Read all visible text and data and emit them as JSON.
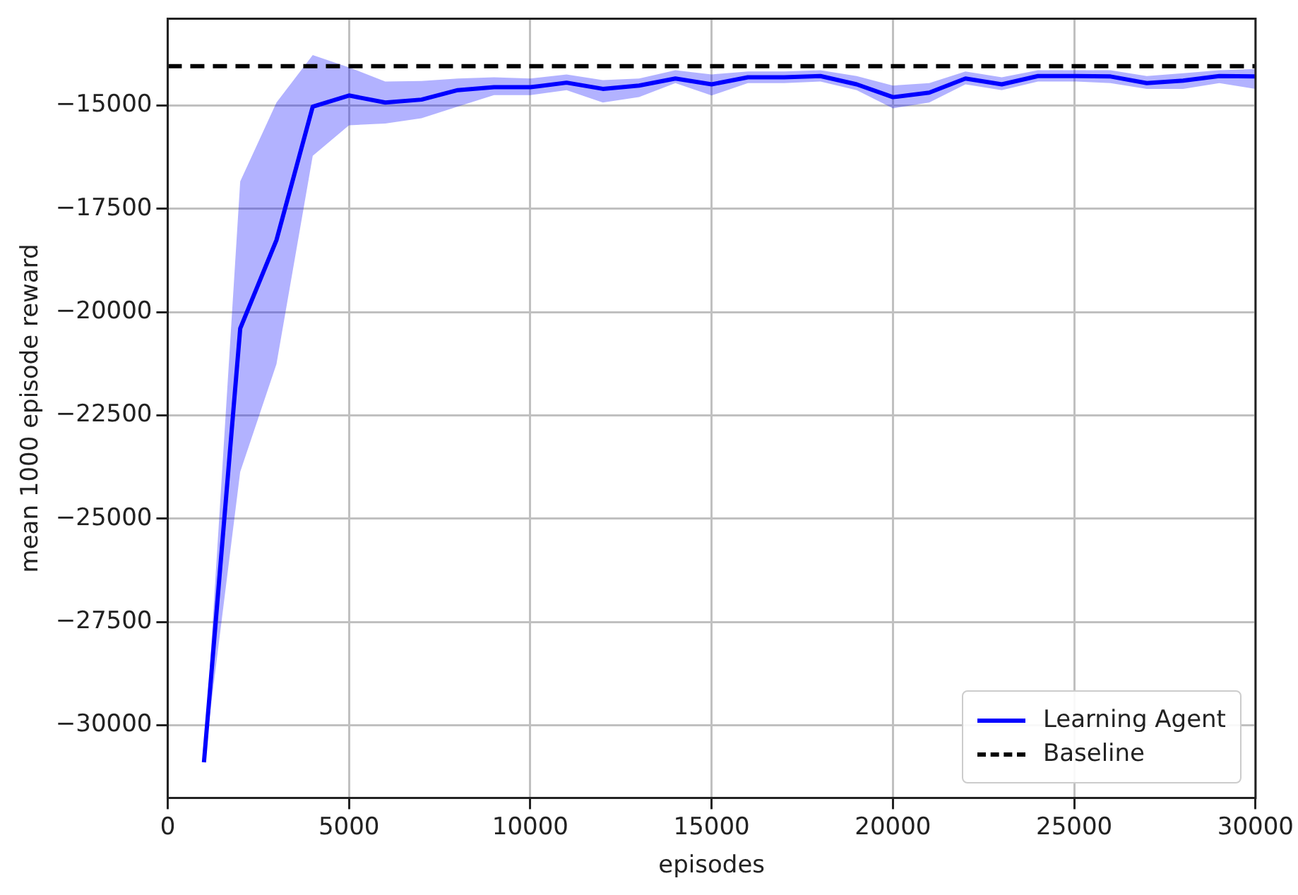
{
  "chart_data": {
    "type": "line",
    "xlabel": "episodes",
    "ylabel": "mean 1000 episode reward",
    "x": [
      1000,
      2000,
      3000,
      4000,
      5000,
      6000,
      7000,
      8000,
      9000,
      10000,
      11000,
      12000,
      13000,
      14000,
      15000,
      16000,
      17000,
      18000,
      19000,
      20000,
      21000,
      22000,
      23000,
      24000,
      25000,
      26000,
      27000,
      28000,
      29000,
      30000
    ],
    "series": [
      {
        "name": "Learning Agent",
        "color": "#0000ff",
        "values": [
          -30900,
          -20400,
          -18260,
          -15030,
          -14760,
          -14930,
          -14860,
          -14630,
          -14560,
          -14560,
          -14450,
          -14600,
          -14520,
          -14350,
          -14490,
          -14320,
          -14320,
          -14290,
          -14490,
          -14800,
          -14690,
          -14350,
          -14490,
          -14290,
          -14290,
          -14300,
          -14460,
          -14400,
          -14290,
          -14300
        ],
        "lower": [
          -30900,
          -23870,
          -21260,
          -16220,
          -15480,
          -15440,
          -15310,
          -15030,
          -14750,
          -14750,
          -14630,
          -14930,
          -14800,
          -14460,
          -14760,
          -14460,
          -14460,
          -14420,
          -14630,
          -15070,
          -14930,
          -14490,
          -14630,
          -14420,
          -14420,
          -14460,
          -14600,
          -14600,
          -14460,
          -14600
        ],
        "upper": [
          -30900,
          -16840,
          -14930,
          -13780,
          -14080,
          -14420,
          -14410,
          -14350,
          -14320,
          -14350,
          -14250,
          -14390,
          -14350,
          -14150,
          -14250,
          -14180,
          -14180,
          -14150,
          -14290,
          -14520,
          -14460,
          -14180,
          -14320,
          -14150,
          -14150,
          -14150,
          -14290,
          -14220,
          -14150,
          -14120
        ]
      }
    ],
    "ref_lines": [
      {
        "axis": "y",
        "value": -14050,
        "label": "Baseline",
        "color": "#000000",
        "line_style": "dashed"
      }
    ],
    "xlim": [
      0,
      30000
    ],
    "xticks": [
      0,
      5000,
      10000,
      15000,
      20000,
      25000,
      30000
    ],
    "ylim": [
      -31760,
      -12900
    ],
    "yticks": [
      -30000,
      -27500,
      -25000,
      -22500,
      -20000,
      -17500,
      -15000
    ],
    "grid": true,
    "legend": "bottom right",
    "line_style": "solid",
    "marker": "none"
  }
}
